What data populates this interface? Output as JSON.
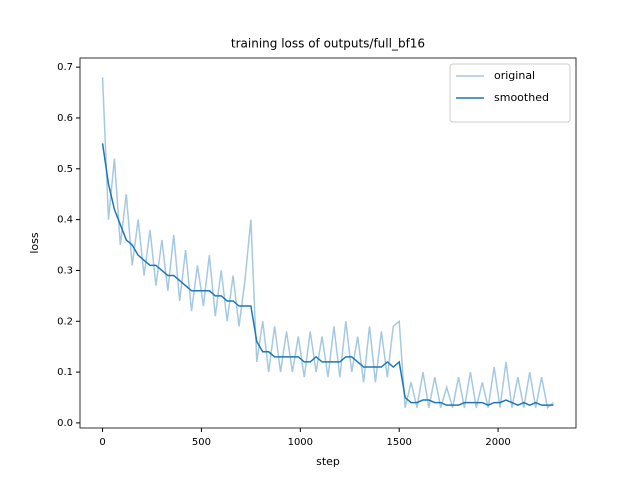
{
  "chart_data": {
    "type": "line",
    "title": "training loss of outputs/full_bf16",
    "xlabel": "step",
    "ylabel": "loss",
    "x": [
      0,
      30,
      60,
      90,
      120,
      150,
      180,
      210,
      240,
      270,
      300,
      330,
      360,
      390,
      420,
      450,
      480,
      510,
      540,
      570,
      600,
      630,
      660,
      690,
      720,
      750,
      780,
      810,
      840,
      870,
      900,
      930,
      960,
      990,
      1020,
      1050,
      1080,
      1110,
      1140,
      1170,
      1200,
      1230,
      1260,
      1290,
      1320,
      1350,
      1380,
      1410,
      1440,
      1470,
      1500,
      1530,
      1560,
      1590,
      1620,
      1650,
      1680,
      1710,
      1740,
      1770,
      1800,
      1830,
      1860,
      1890,
      1920,
      1950,
      1980,
      2010,
      2040,
      2070,
      2100,
      2130,
      2160,
      2190,
      2220,
      2250,
      2280
    ],
    "series": [
      {
        "name": "original",
        "color": "#1f77b4",
        "alpha": 0.4,
        "values": [
          0.68,
          0.4,
          0.52,
          0.35,
          0.45,
          0.31,
          0.4,
          0.29,
          0.38,
          0.27,
          0.36,
          0.26,
          0.37,
          0.24,
          0.34,
          0.22,
          0.31,
          0.23,
          0.33,
          0.21,
          0.3,
          0.2,
          0.29,
          0.19,
          0.28,
          0.4,
          0.12,
          0.2,
          0.1,
          0.19,
          0.1,
          0.18,
          0.1,
          0.17,
          0.09,
          0.18,
          0.1,
          0.17,
          0.09,
          0.19,
          0.09,
          0.2,
          0.1,
          0.17,
          0.08,
          0.19,
          0.08,
          0.18,
          0.09,
          0.19,
          0.2,
          0.03,
          0.08,
          0.03,
          0.1,
          0.03,
          0.09,
          0.03,
          0.07,
          0.03,
          0.09,
          0.03,
          0.1,
          0.03,
          0.08,
          0.03,
          0.11,
          0.03,
          0.12,
          0.03,
          0.09,
          0.03,
          0.1,
          0.03,
          0.09,
          0.03,
          0.04
        ]
      },
      {
        "name": "smoothed",
        "color": "#1f77b4",
        "alpha": 1,
        "values": [
          0.55,
          0.47,
          0.42,
          0.39,
          0.36,
          0.35,
          0.33,
          0.32,
          0.31,
          0.31,
          0.3,
          0.29,
          0.29,
          0.28,
          0.27,
          0.26,
          0.26,
          0.26,
          0.26,
          0.25,
          0.25,
          0.24,
          0.24,
          0.23,
          0.23,
          0.23,
          0.16,
          0.14,
          0.14,
          0.13,
          0.13,
          0.13,
          0.13,
          0.13,
          0.12,
          0.12,
          0.13,
          0.12,
          0.12,
          0.12,
          0.12,
          0.13,
          0.13,
          0.12,
          0.11,
          0.11,
          0.11,
          0.11,
          0.12,
          0.11,
          0.12,
          0.05,
          0.04,
          0.04,
          0.045,
          0.045,
          0.04,
          0.04,
          0.035,
          0.035,
          0.035,
          0.04,
          0.04,
          0.04,
          0.04,
          0.035,
          0.04,
          0.04,
          0.045,
          0.04,
          0.035,
          0.04,
          0.035,
          0.04,
          0.035,
          0.035,
          0.035
        ]
      }
    ],
    "xlim": [
      -114,
      2394
    ],
    "ylim": [
      -0.01,
      0.718
    ],
    "xticks": [
      0,
      500,
      1000,
      1500,
      2000
    ],
    "yticks": [
      {
        "value": 0,
        "label": "0.0"
      },
      0.1,
      0.2,
      0.3,
      0.4,
      0.5,
      0.6,
      0.7
    ],
    "legend": "upper right"
  }
}
